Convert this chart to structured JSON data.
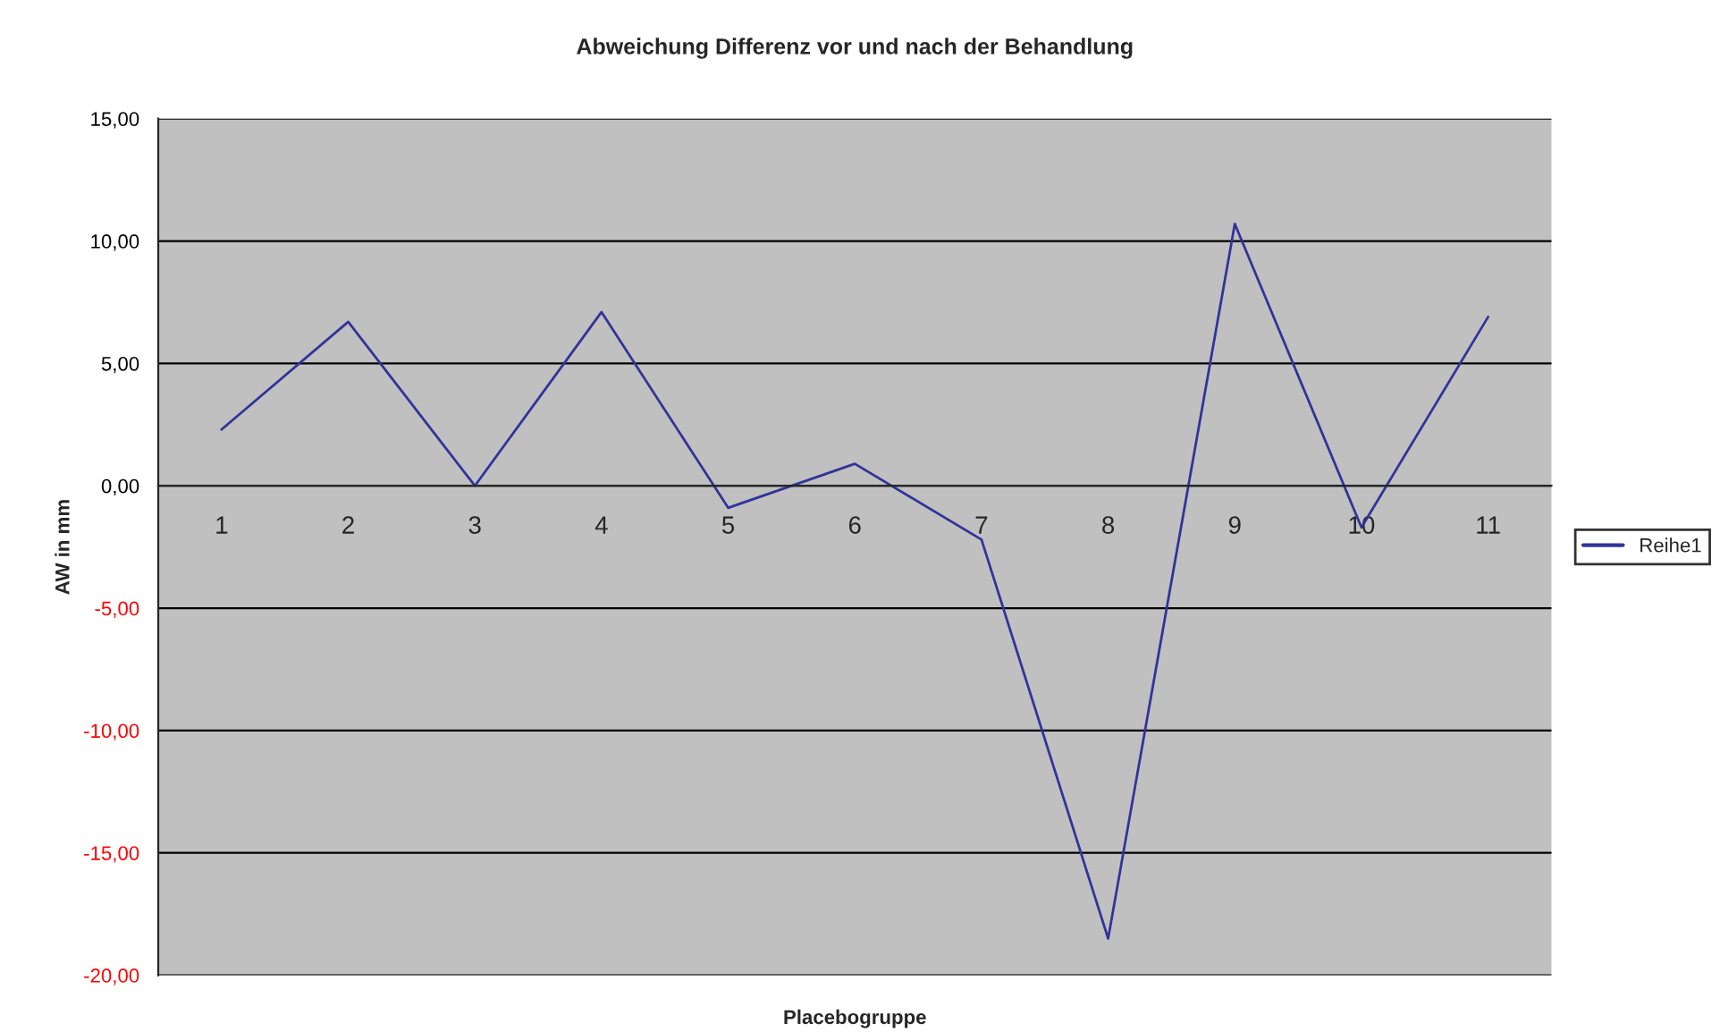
{
  "chart_data": {
    "type": "line",
    "title": "Abweichung Differenz vor und nach der Behandlung",
    "xlabel": "Placebogruppe",
    "ylabel": "AW in mm",
    "categories": [
      "1",
      "2",
      "3",
      "4",
      "5",
      "6",
      "7",
      "8",
      "9",
      "10",
      "11"
    ],
    "series": [
      {
        "name": "Reihe1",
        "color": "#333399",
        "values": [
          2.3,
          6.7,
          0.0,
          7.1,
          -0.9,
          0.9,
          -2.2,
          -18.5,
          10.7,
          -1.7,
          6.9
        ]
      }
    ],
    "ylim": [
      -20,
      15
    ],
    "yticks": [
      {
        "value": -20,
        "label": "-20,00"
      },
      {
        "value": -15,
        "label": "-15,00"
      },
      {
        "value": -10,
        "label": "-10,00"
      },
      {
        "value": -5,
        "label": "-5,00"
      },
      {
        "value": 0,
        "label": "0,00"
      },
      {
        "value": 5,
        "label": "5,00"
      },
      {
        "value": 10,
        "label": "10,00"
      },
      {
        "value": 15,
        "label": "15,00"
      }
    ],
    "grid": "y",
    "legend": "right",
    "marker": "none",
    "line_style": "solid"
  }
}
